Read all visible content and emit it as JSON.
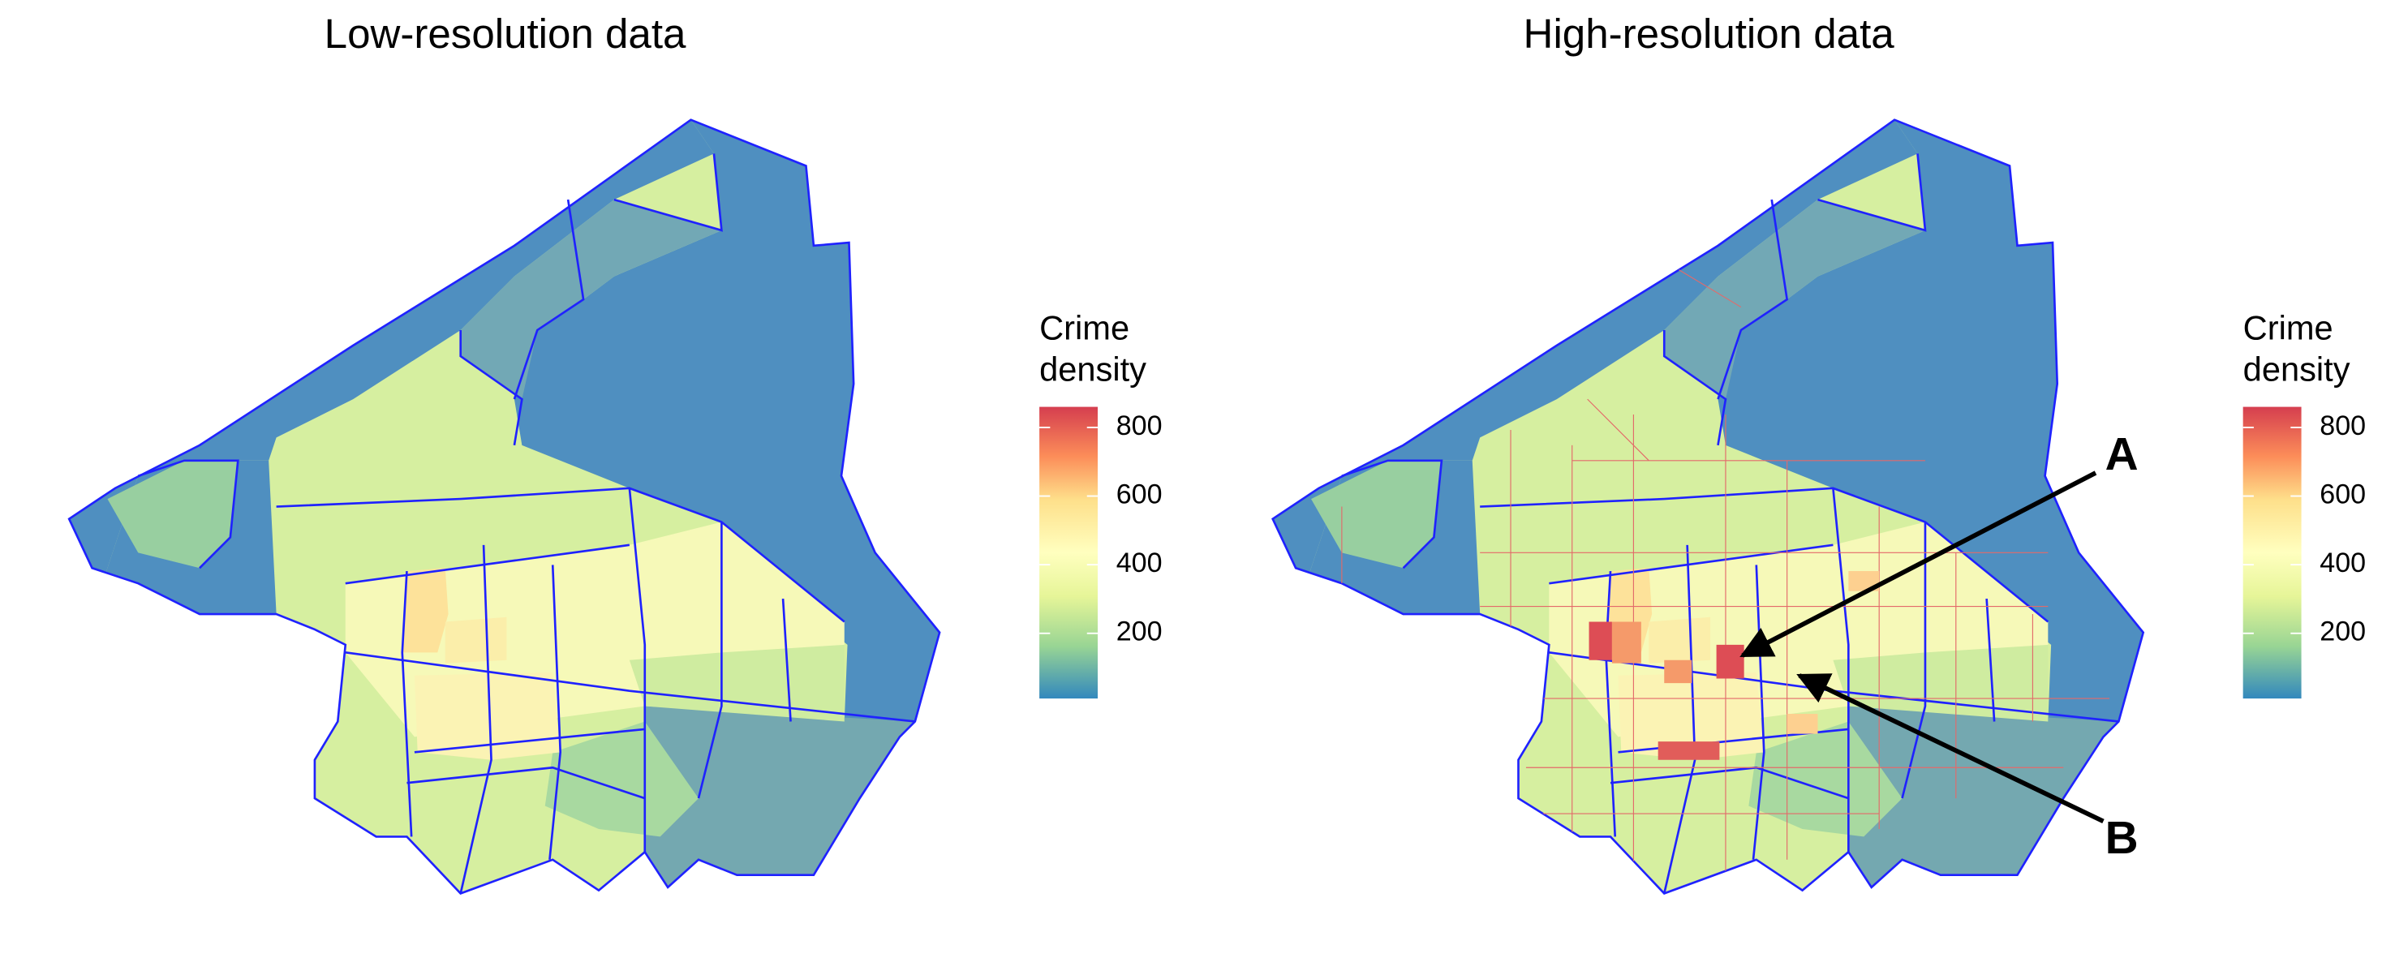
{
  "panels": [
    {
      "title": "Low-resolution data",
      "legend": {
        "title": "Crime density",
        "limits": [
          10,
          860
        ],
        "ticks": [
          200,
          400,
          600,
          800
        ]
      }
    },
    {
      "title": "High-resolution data",
      "legend": {
        "title": "Crime density",
        "limits": [
          10,
          860
        ],
        "ticks": [
          200,
          400,
          600,
          800
        ]
      },
      "annotations": [
        "A",
        "B"
      ]
    }
  ]
}
